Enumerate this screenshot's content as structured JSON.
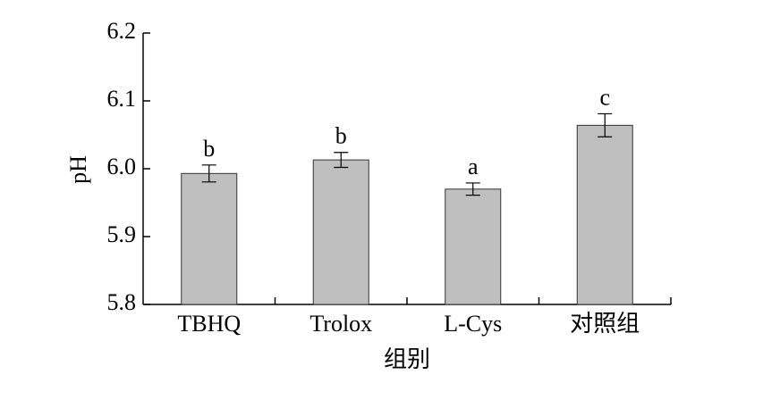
{
  "chart_data": {
    "type": "bar",
    "y_label": "pH",
    "x_label": "组别",
    "categories": [
      "TBHQ",
      "Trolox",
      "L-Cys",
      "对照组"
    ],
    "values": [
      5.993,
      6.013,
      5.97,
      6.064
    ],
    "errors": [
      0.0125,
      0.011,
      0.009,
      0.017
    ],
    "letters": [
      "b",
      "b",
      "a",
      "c"
    ],
    "color": "#bfbfbf",
    "ylim": [
      5.8,
      6.2
    ],
    "yticks": [
      5.8,
      5.9,
      {
        "value": 6,
        "label": "6.0"
      },
      6.1,
      6.2
    ]
  }
}
